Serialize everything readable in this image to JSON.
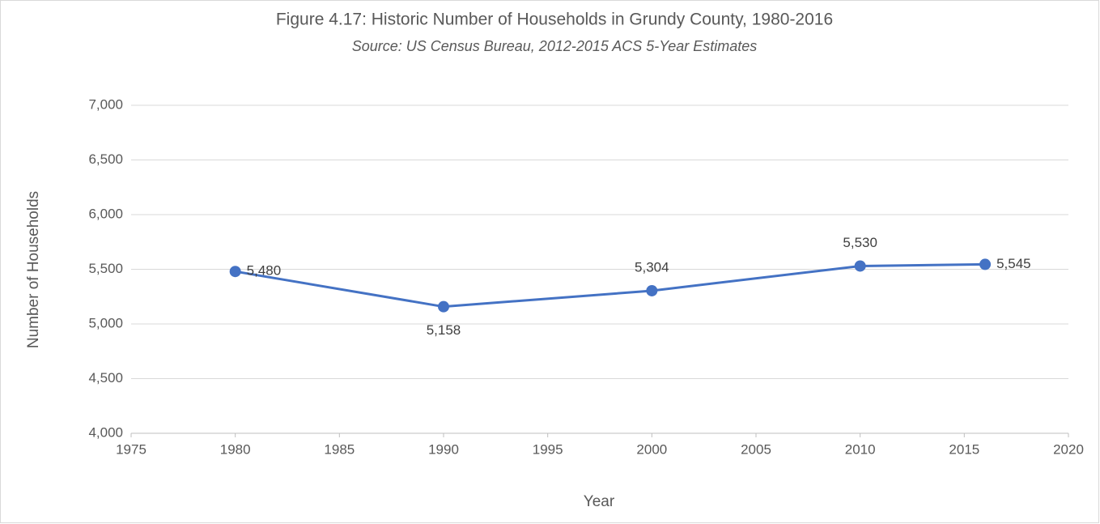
{
  "chart_data": {
    "type": "line",
    "title": "Figure 4.17: Historic Number of Households in Grundy County, 1980-2016",
    "subtitle": "Source: US Census Bureau, 2012-2015 ACS 5-Year Estimates",
    "x_label": "Year",
    "y_label": "Number of Households",
    "x": [
      1980,
      1990,
      2000,
      2010,
      2016
    ],
    "values": [
      5480,
      5158,
      5304,
      5530,
      5545
    ],
    "value_labels": [
      "5,480",
      "5,158",
      "5,304",
      "5,530",
      "5,545"
    ],
    "color": "#4472c4",
    "xlim": [
      1975,
      2020
    ],
    "xticks": [
      1975,
      1980,
      1985,
      1990,
      1995,
      2000,
      2005,
      2010,
      2015,
      2020
    ],
    "ylim": [
      4000,
      7000
    ],
    "yticks": [
      {
        "value": 4000,
        "label": "4,000"
      },
      {
        "value": 4500,
        "label": "4,500"
      },
      {
        "value": 5000,
        "label": "5,000"
      },
      {
        "value": 5500,
        "label": "5,500"
      },
      {
        "value": 6000,
        "label": "6,000"
      },
      {
        "value": 6500,
        "label": "6,500"
      },
      {
        "value": 7000,
        "label": "7,000"
      }
    ],
    "grid": true
  }
}
